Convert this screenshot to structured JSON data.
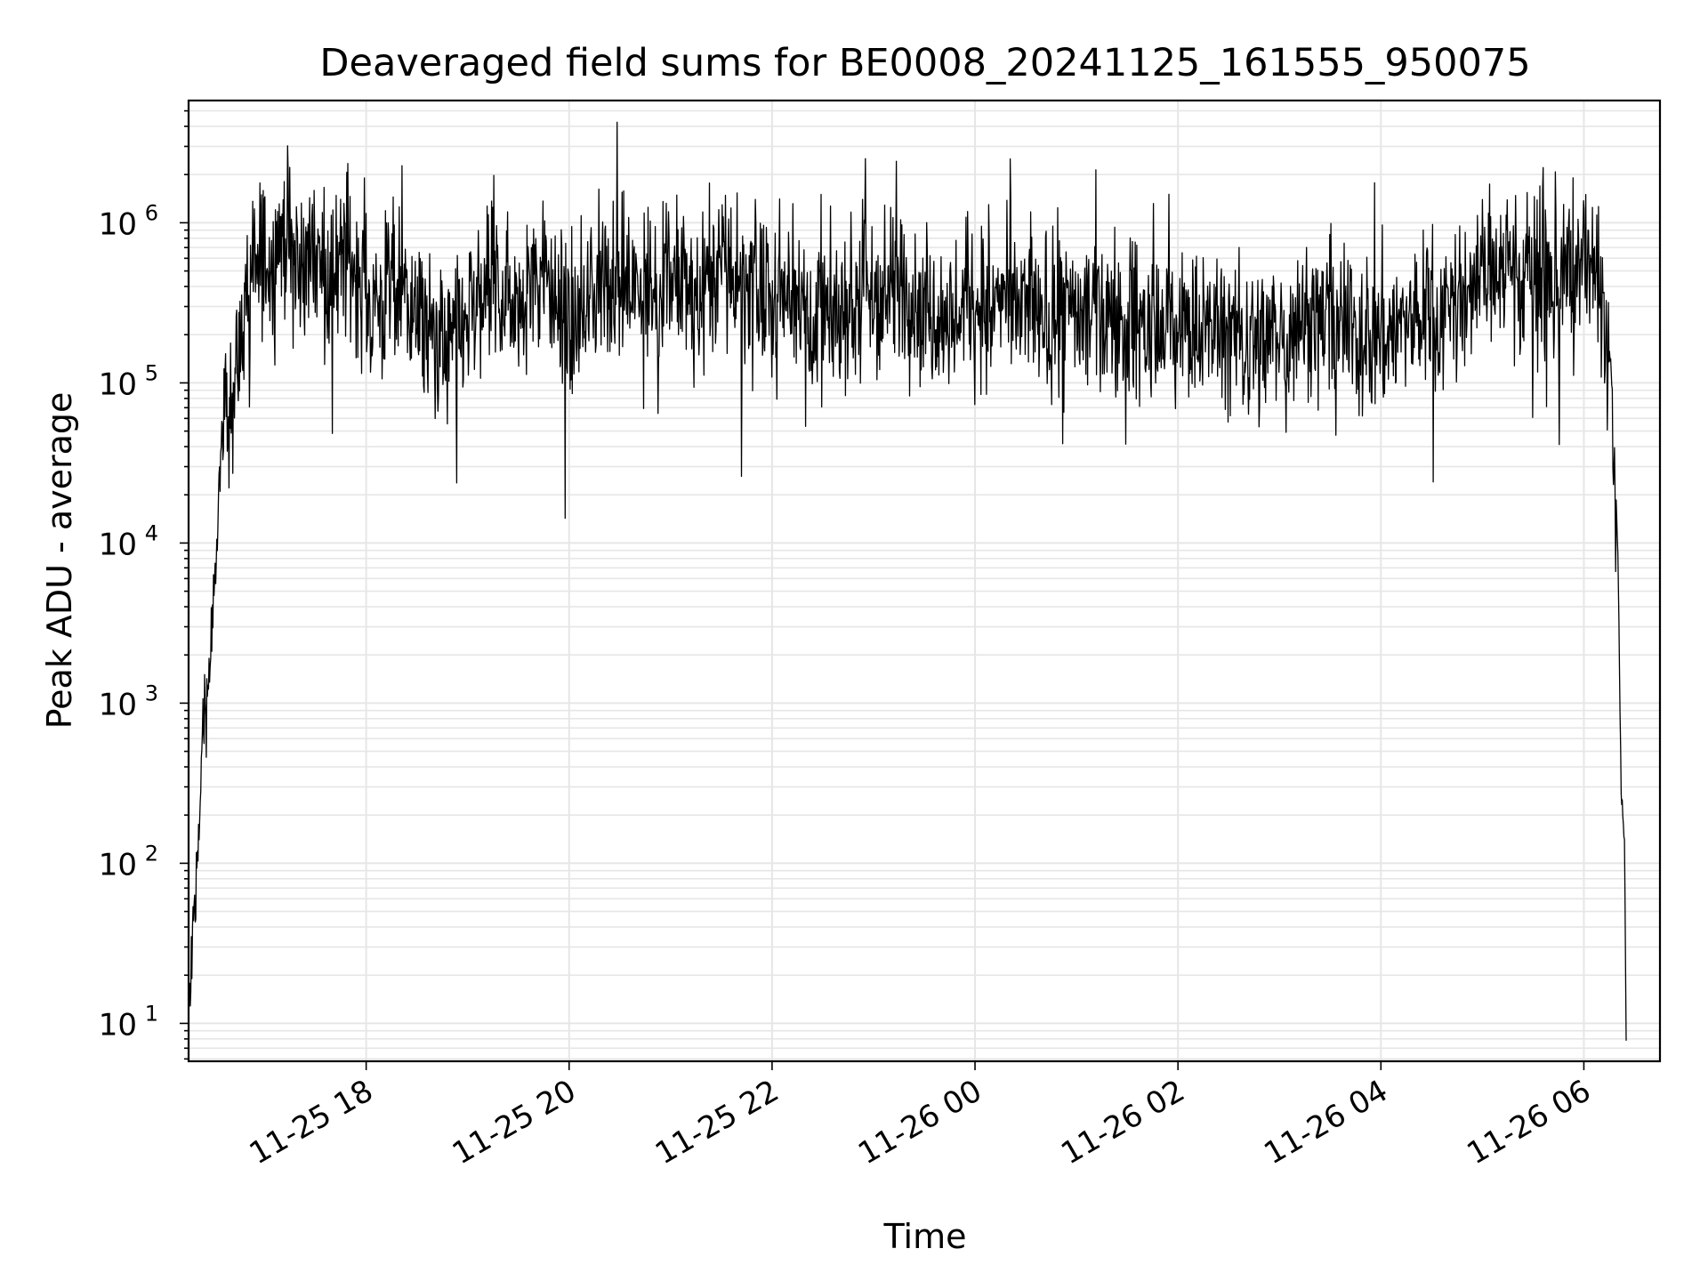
{
  "chart_data": {
    "type": "line",
    "title": "Deaveraged field sums for BE0008_20241125_161555_950075",
    "xlabel": "Time",
    "ylabel": "Peak ADU - average",
    "yscale": "log",
    "xlim": [
      "2024-11-25 16:15",
      "2024-11-26 06:45"
    ],
    "ylim": [
      5.8,
      5800000
    ],
    "grid": true,
    "line_color": "#000000",
    "grid_color": "#e6e6e6",
    "x_ticks": [
      "11-25 18",
      "11-25 20",
      "11-25 22",
      "11-26 00",
      "11-26 02",
      "11-26 04",
      "11-26 06"
    ],
    "x_tick_times": [
      "2024-11-25 18:00",
      "2024-11-25 20:00",
      "2024-11-25 22:00",
      "2024-11-26 00:00",
      "2024-11-26 02:00",
      "2024-11-26 04:00",
      "2024-11-26 06:00"
    ],
    "y_ticks": [
      {
        "base": "10",
        "exp": "1",
        "value": 10
      },
      {
        "base": "10",
        "exp": "2",
        "value": 100
      },
      {
        "base": "10",
        "exp": "3",
        "value": 1000
      },
      {
        "base": "10",
        "exp": "4",
        "value": 10000
      },
      {
        "base": "10",
        "exp": "5",
        "value": 100000
      },
      {
        "base": "10",
        "exp": "6",
        "value": 1000000
      }
    ],
    "series": [
      {
        "x": [
          "2024-11-25 16:15",
          "2024-11-25 16:18",
          "2024-11-25 16:21",
          "2024-11-25 16:24",
          "2024-11-25 16:27",
          "2024-11-25 16:30",
          "2024-11-25 16:33",
          "2024-11-25 16:36",
          "2024-11-25 16:39",
          "2024-11-25 16:42",
          "2024-11-25 16:45",
          "2024-11-25 16:50",
          "2024-11-25 16:55",
          "2024-11-25 17:00",
          "2024-11-25 17:05",
          "2024-11-25 17:10",
          "2024-11-25 17:20",
          "2024-11-25 17:30",
          "2024-11-25 17:40",
          "2024-11-25 17:50",
          "2024-11-25 18:00",
          "2024-11-25 18:10",
          "2024-11-25 18:20",
          "2024-11-25 18:30",
          "2024-11-25 18:40",
          "2024-11-25 18:50",
          "2024-11-25 19:00",
          "2024-11-25 19:15",
          "2024-11-25 19:30",
          "2024-11-25 19:45",
          "2024-11-25 20:00",
          "2024-11-25 20:15",
          "2024-11-25 20:30",
          "2024-11-25 20:45",
          "2024-11-25 21:00",
          "2024-11-25 21:15",
          "2024-11-25 21:30",
          "2024-11-25 21:45",
          "2024-11-25 22:00",
          "2024-11-25 22:15",
          "2024-11-25 22:30",
          "2024-11-25 22:45",
          "2024-11-25 23:00",
          "2024-11-25 23:15",
          "2024-11-25 23:30",
          "2024-11-25 23:45",
          "2024-11-26 00:00",
          "2024-11-26 00:20",
          "2024-11-26 00:40",
          "2024-11-26 01:00",
          "2024-11-26 01:20",
          "2024-11-26 01:40",
          "2024-11-26 02:00",
          "2024-11-26 02:20",
          "2024-11-26 02:40",
          "2024-11-26 03:00",
          "2024-11-26 03:20",
          "2024-11-26 03:40",
          "2024-11-26 04:00",
          "2024-11-26 04:20",
          "2024-11-26 04:40",
          "2024-11-26 05:00",
          "2024-11-26 05:15",
          "2024-11-26 05:30",
          "2024-11-26 05:45",
          "2024-11-26 06:00",
          "2024-11-26 06:10",
          "2024-11-26 06:15",
          "2024-11-26 06:20",
          "2024-11-26 06:22",
          "2024-11-26 06:24",
          "2024-11-26 06:25"
        ],
        "y": [
          10,
          40,
          150,
          800,
          1500,
          4000,
          20000,
          60000,
          80000,
          90000,
          150000,
          400000,
          500000,
          700000,
          600000,
          900000,
          500000,
          700000,
          400000,
          600000,
          350000,
          300000,
          500000,
          250000,
          200000,
          150000,
          250000,
          400000,
          350000,
          500000,
          200000,
          400000,
          450000,
          350000,
          500000,
          300000,
          600000,
          400000,
          300000,
          400000,
          250000,
          300000,
          350000,
          400000,
          300000,
          250000,
          350000,
          300000,
          250000,
          280000,
          250000,
          220000,
          200000,
          220000,
          180000,
          200000,
          250000,
          220000,
          200000,
          250000,
          300000,
          500000,
          600000,
          500000,
          450000,
          600000,
          400000,
          150000,
          10000,
          300,
          150,
          8
        ]
      }
    ]
  }
}
